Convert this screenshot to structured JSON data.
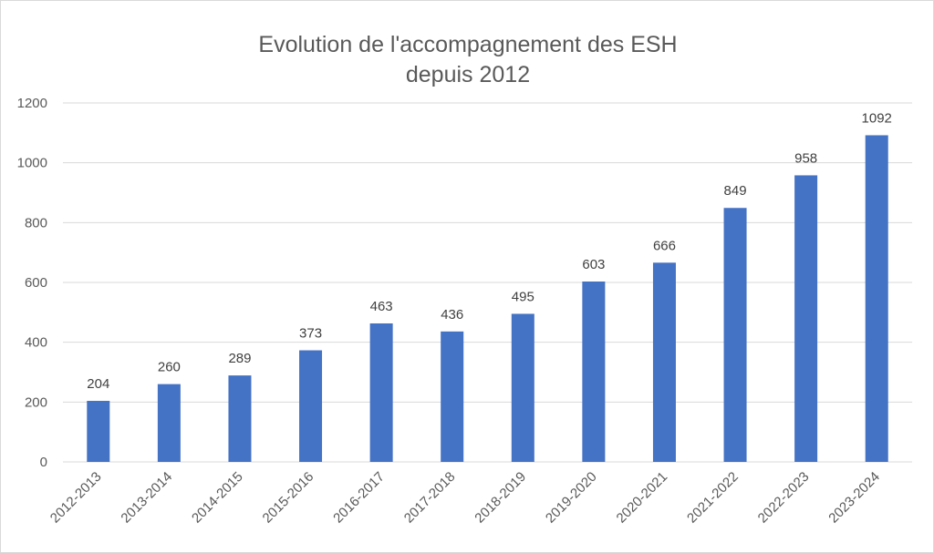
{
  "chart_data": {
    "type": "bar",
    "title_lines": [
      "Evolution de l'accompagnement des ESH",
      "depuis 2012"
    ],
    "xlabel": "",
    "ylabel": "",
    "categories": [
      "2012-2013",
      "2013-2014",
      "2014-2015",
      "2015-2016",
      "2016-2017",
      "2017-2018",
      "2018-2019",
      "2019-2020",
      "2020-2021",
      "2021-2022",
      "2022-2023",
      "2023-2024"
    ],
    "values": [
      204,
      260,
      289,
      373,
      463,
      436,
      495,
      603,
      666,
      849,
      958,
      1092
    ],
    "ylim": [
      0,
      1200
    ],
    "yticks": [
      0,
      200,
      400,
      600,
      800,
      1000,
      1200
    ],
    "grid": true,
    "legend": "none",
    "bar_color": "#4472C4",
    "gridline_color": "#d9d9d9"
  }
}
